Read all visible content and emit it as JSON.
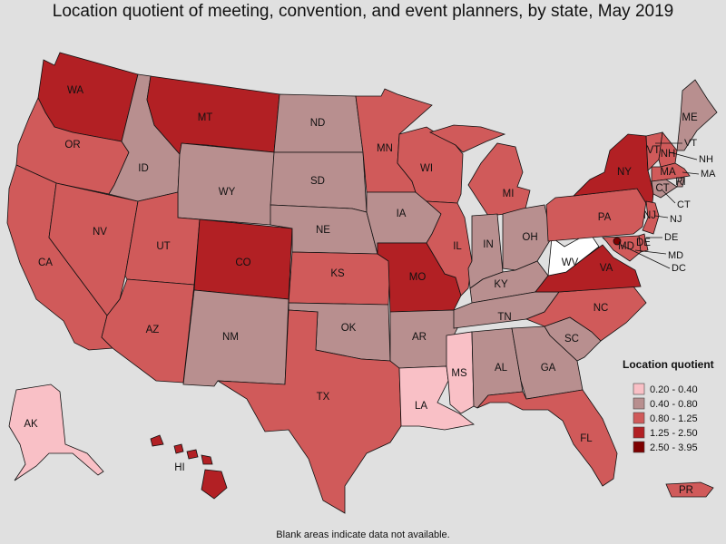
{
  "title": "Location quotient of meeting, convention, and event planners, by state, May 2019",
  "footnote": "Blank areas indicate data not available.",
  "legend": {
    "title": "Location quotient",
    "classes": [
      {
        "label": "0.20 - 0.40",
        "color": "#f9c0c6"
      },
      {
        "label": "0.40 - 0.80",
        "color": "#b88f8f"
      },
      {
        "label": "0.80 - 1.25",
        "color": "#d05a5a"
      },
      {
        "label": "1.25 - 2.50",
        "color": "#b22024"
      },
      {
        "label": "2.50 - 3.95",
        "color": "#7d0000"
      }
    ]
  },
  "map_data": {
    "type": "choropleth",
    "regions": [
      {
        "id": "WA",
        "class": 3
      },
      {
        "id": "OR",
        "class": 2
      },
      {
        "id": "CA",
        "class": 2
      },
      {
        "id": "NV",
        "class": 2
      },
      {
        "id": "ID",
        "class": 1
      },
      {
        "id": "MT",
        "class": 3
      },
      {
        "id": "WY",
        "class": 1
      },
      {
        "id": "UT",
        "class": 2
      },
      {
        "id": "AZ",
        "class": 2
      },
      {
        "id": "CO",
        "class": 3
      },
      {
        "id": "NM",
        "class": 1
      },
      {
        "id": "ND",
        "class": 1
      },
      {
        "id": "SD",
        "class": 1
      },
      {
        "id": "NE",
        "class": 1
      },
      {
        "id": "KS",
        "class": 2
      },
      {
        "id": "OK",
        "class": 1
      },
      {
        "id": "TX",
        "class": 2
      },
      {
        "id": "MN",
        "class": 2
      },
      {
        "id": "IA",
        "class": 1
      },
      {
        "id": "MO",
        "class": 3
      },
      {
        "id": "AR",
        "class": 1
      },
      {
        "id": "LA",
        "class": 0
      },
      {
        "id": "WI",
        "class": 2
      },
      {
        "id": "IL",
        "class": 2
      },
      {
        "id": "MI",
        "class": 2
      },
      {
        "id": "IN",
        "class": 1
      },
      {
        "id": "OH",
        "class": 1
      },
      {
        "id": "KY",
        "class": 1
      },
      {
        "id": "TN",
        "class": 1
      },
      {
        "id": "MS",
        "class": 0
      },
      {
        "id": "AL",
        "class": 1
      },
      {
        "id": "GA",
        "class": 1
      },
      {
        "id": "FL",
        "class": 2
      },
      {
        "id": "SC",
        "class": 1
      },
      {
        "id": "NC",
        "class": 2
      },
      {
        "id": "VA",
        "class": 3
      },
      {
        "id": "WV",
        "class": null
      },
      {
        "id": "PA",
        "class": 2
      },
      {
        "id": "NY",
        "class": 3
      },
      {
        "id": "ME",
        "class": 1
      },
      {
        "id": "VT",
        "class": 2
      },
      {
        "id": "NH",
        "class": 2
      },
      {
        "id": "MA",
        "class": 2
      },
      {
        "id": "RI",
        "class": 1
      },
      {
        "id": "CT",
        "class": 1
      },
      {
        "id": "NJ",
        "class": 2
      },
      {
        "id": "DE",
        "class": 2
      },
      {
        "id": "MD",
        "class": 2
      },
      {
        "id": "DC",
        "class": 4
      },
      {
        "id": "AK",
        "class": 0
      },
      {
        "id": "HI",
        "class": 3
      },
      {
        "id": "PR",
        "class": 2
      }
    ]
  }
}
